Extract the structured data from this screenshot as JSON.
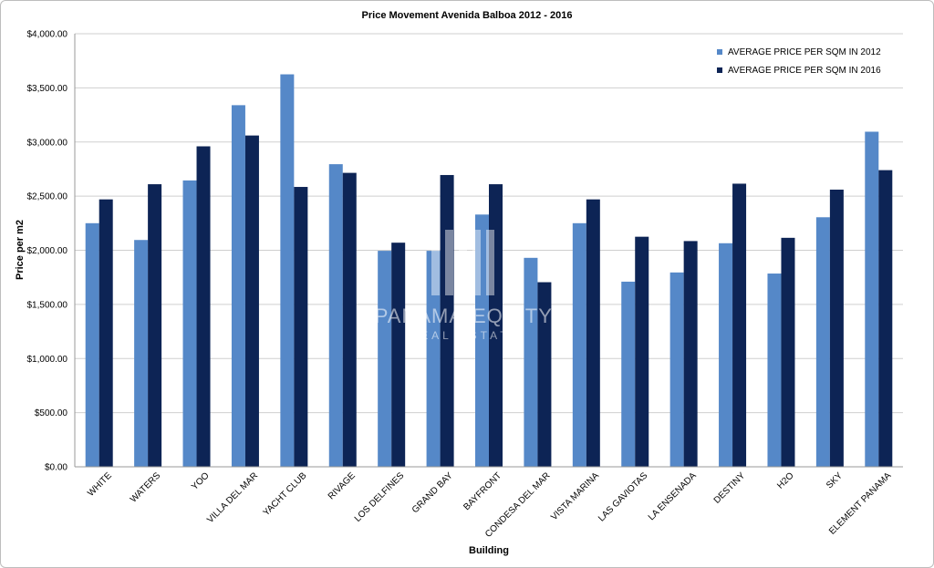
{
  "chart_data": {
    "type": "bar",
    "title": "Price Movement Avenida Balboa 2012 - 2016",
    "xlabel": "Building",
    "ylabel": "Price per m2",
    "ylim": [
      0,
      4000
    ],
    "yticks": [
      0,
      500,
      1000,
      1500,
      2000,
      2500,
      3000,
      3500,
      4000
    ],
    "ytick_labels": [
      "$0.00",
      "$500.00",
      "$1,000.00",
      "$1,500.00",
      "$2,000.00",
      "$2,500.00",
      "$3,000.00",
      "$3,500.00",
      "$4,000.00"
    ],
    "grid": true,
    "legend_position": "top-right",
    "categories": [
      "WHITE",
      "WATERS",
      "YOO",
      "VILLA DEL MAR",
      "YACHT CLUB",
      "RIVAGE",
      "LOS DELFINES",
      "GRAND BAY",
      "BAYFRONT",
      "CONDESA DEL MAR",
      "VISTA MARINA",
      "LAS GAVIOTAS",
      "LA ENSENADA",
      "DESTINY",
      "H2O",
      "SKY",
      "ELEMENT PANAMA"
    ],
    "series": [
      {
        "name": "AVERAGE PRICE PER SQM IN 2012",
        "color": "#5588c8",
        "values": [
          2250,
          2095,
          2645,
          3340,
          3625,
          2795,
          1995,
          1995,
          2330,
          1930,
          2250,
          1710,
          1795,
          2065,
          1785,
          2305,
          3095
        ]
      },
      {
        "name": "AVERAGE PRICE PER SQM IN 2016",
        "color": "#0d2455",
        "values": [
          2470,
          2610,
          2960,
          3060,
          2585,
          2715,
          2070,
          2695,
          2610,
          1705,
          2470,
          2125,
          2085,
          2615,
          2115,
          2560,
          2740
        ]
      }
    ]
  },
  "watermark": {
    "brand_left": "PANAMA",
    "brand_right": "EQUITY",
    "tagline": "REAL ESTATE"
  }
}
